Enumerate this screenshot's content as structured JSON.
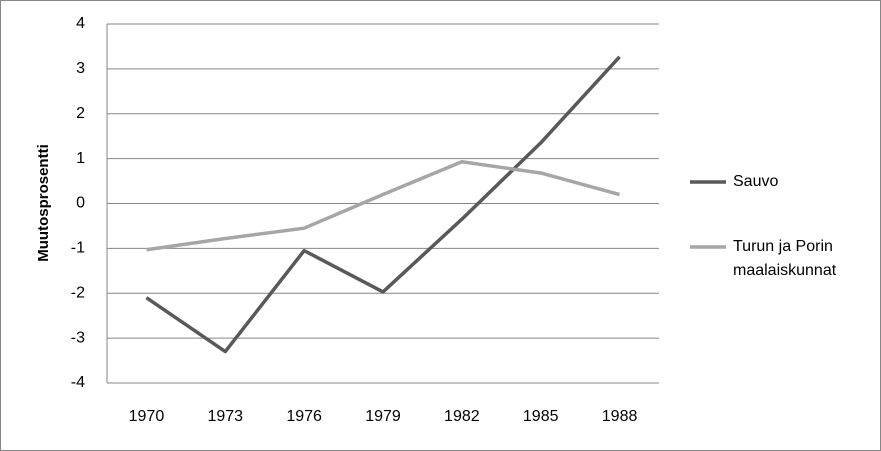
{
  "chart_data": {
    "type": "line",
    "y_label": "Muutosprosentti",
    "categories": [
      "1970",
      "1973",
      "1976",
      "1979",
      "1982",
      "1985",
      "1988"
    ],
    "series": [
      {
        "name": "Sauvo",
        "color": "#595959",
        "values": [
          -2.1,
          -3.3,
          -1.05,
          -1.97,
          -0.35,
          1.35,
          3.27
        ]
      },
      {
        "name": "Turun ja Porin maalaiskunnat",
        "color": "#a6a6a6",
        "values": [
          -1.03,
          -0.78,
          -0.55,
          0.2,
          0.93,
          0.68,
          0.2
        ]
      }
    ],
    "ylim": [
      -4,
      4
    ],
    "yticks": [
      -4,
      -3,
      -2,
      -1,
      0,
      1,
      2,
      3,
      4
    ],
    "grid": true,
    "legend": "right"
  }
}
